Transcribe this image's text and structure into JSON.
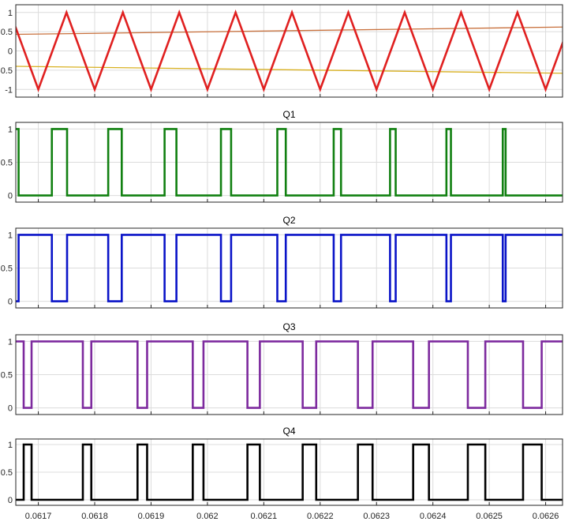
{
  "chart_data": [
    {
      "type": "line",
      "title": "",
      "xlim": [
        0.06166,
        0.06263
      ],
      "ylim": [
        -1.2,
        1.2
      ],
      "x_ticks": [
        "0.0617",
        "0.0618",
        "0.0619",
        "0.062",
        "0.0621",
        "0.0622",
        "0.0623",
        "0.0624",
        "0.0625",
        "0.0626"
      ],
      "y_ticks": [
        "1",
        "0.5",
        "0",
        "-0.5",
        "-1"
      ],
      "grid": true,
      "show_x_tick_labels": false,
      "carrier": {
        "period": 0.0001,
        "peak_x": 0.06175,
        "min": -1,
        "max": 1,
        "color": "#e02020"
      },
      "series": [
        {
          "x": [
            0.06166,
            0.06263
          ],
          "values": [
            0.43,
            0.62
          ],
          "color": "#c8703c"
        },
        {
          "x": [
            0.06166,
            0.06263
          ],
          "values": [
            -0.4,
            -0.58
          ],
          "color": "#d8b020"
        }
      ]
    },
    {
      "type": "line",
      "title": "Q1",
      "xlim": [
        0.06166,
        0.06263
      ],
      "ylim": [
        -0.1,
        1.1
      ],
      "x_ticks": [
        "0.0617",
        "0.0618",
        "0.0619",
        "0.062",
        "0.0621",
        "0.0622",
        "0.0623",
        "0.0624",
        "0.0625",
        "0.0626"
      ],
      "y_ticks": [
        "1",
        "0.5",
        "0"
      ],
      "grid": true,
      "show_x_tick_labels": false,
      "color": "#118011",
      "initial_level": 1,
      "high_intervals": [
        [
          0.06166,
          0.061665
        ],
        [
          0.061724,
          0.061751
        ],
        [
          0.061824,
          0.061848
        ],
        [
          0.061924,
          0.061945
        ],
        [
          0.062024,
          0.062042
        ],
        [
          0.062124,
          0.062139
        ],
        [
          0.062224,
          0.062237
        ],
        [
          0.062324,
          0.062334
        ],
        [
          0.062424,
          0.062432
        ],
        [
          0.062524,
          0.062529
        ]
      ]
    },
    {
      "type": "line",
      "title": "Q2",
      "xlim": [
        0.06166,
        0.06263
      ],
      "ylim": [
        -0.1,
        1.1
      ],
      "x_ticks": [
        "0.0617",
        "0.0618",
        "0.0619",
        "0.062",
        "0.0621",
        "0.0622",
        "0.0623",
        "0.0624",
        "0.0625",
        "0.0626"
      ],
      "y_ticks": [
        "1",
        "0.5",
        "0"
      ],
      "grid": true,
      "show_x_tick_labels": false,
      "color": "#0a14c8",
      "initial_level": 0,
      "high_intervals": [
        [
          0.061665,
          0.061724
        ],
        [
          0.061751,
          0.061824
        ],
        [
          0.061848,
          0.061924
        ],
        [
          0.061945,
          0.062024
        ],
        [
          0.062042,
          0.062124
        ],
        [
          0.062139,
          0.062224
        ],
        [
          0.062237,
          0.062324
        ],
        [
          0.062334,
          0.062424
        ],
        [
          0.062432,
          0.062524
        ],
        [
          0.062529,
          0.06263
        ]
      ]
    },
    {
      "type": "line",
      "title": "Q3",
      "xlim": [
        0.06166,
        0.06263
      ],
      "ylim": [
        -0.1,
        1.1
      ],
      "x_ticks": [
        "0.0617",
        "0.0618",
        "0.0619",
        "0.062",
        "0.0621",
        "0.0622",
        "0.0623",
        "0.0624",
        "0.0625",
        "0.0626"
      ],
      "y_ticks": [
        "1",
        "0.5",
        "0"
      ],
      "grid": true,
      "show_x_tick_labels": false,
      "color": "#7d2a9e",
      "initial_level": 1,
      "high_intervals": [
        [
          0.06166,
          0.061674
        ],
        [
          0.061688,
          0.061779
        ],
        [
          0.061794,
          0.061876
        ],
        [
          0.061893,
          0.061974
        ],
        [
          0.061993,
          0.062071
        ],
        [
          0.062093,
          0.062169
        ],
        [
          0.062193,
          0.062267
        ],
        [
          0.062293,
          0.062365
        ],
        [
          0.062393,
          0.062462
        ],
        [
          0.062493,
          0.06256
        ],
        [
          0.062593,
          0.06263
        ]
      ]
    },
    {
      "type": "line",
      "title": "Q4",
      "xlim": [
        0.06166,
        0.06263
      ],
      "ylim": [
        -0.1,
        1.1
      ],
      "x_ticks": [
        "0.0617",
        "0.0618",
        "0.0619",
        "0.062",
        "0.0621",
        "0.0622",
        "0.0623",
        "0.0624",
        "0.0625",
        "0.0626"
      ],
      "y_ticks": [
        "1",
        "0.5",
        "0"
      ],
      "grid": true,
      "show_x_tick_labels": true,
      "color": "#000000",
      "initial_level": 0,
      "high_intervals": [
        [
          0.061674,
          0.061688
        ],
        [
          0.061779,
          0.061794
        ],
        [
          0.061876,
          0.061893
        ],
        [
          0.061974,
          0.061993
        ],
        [
          0.062071,
          0.062093
        ],
        [
          0.062169,
          0.062193
        ],
        [
          0.062267,
          0.062293
        ],
        [
          0.062365,
          0.062393
        ],
        [
          0.062462,
          0.062493
        ],
        [
          0.06256,
          0.062593
        ]
      ]
    }
  ]
}
